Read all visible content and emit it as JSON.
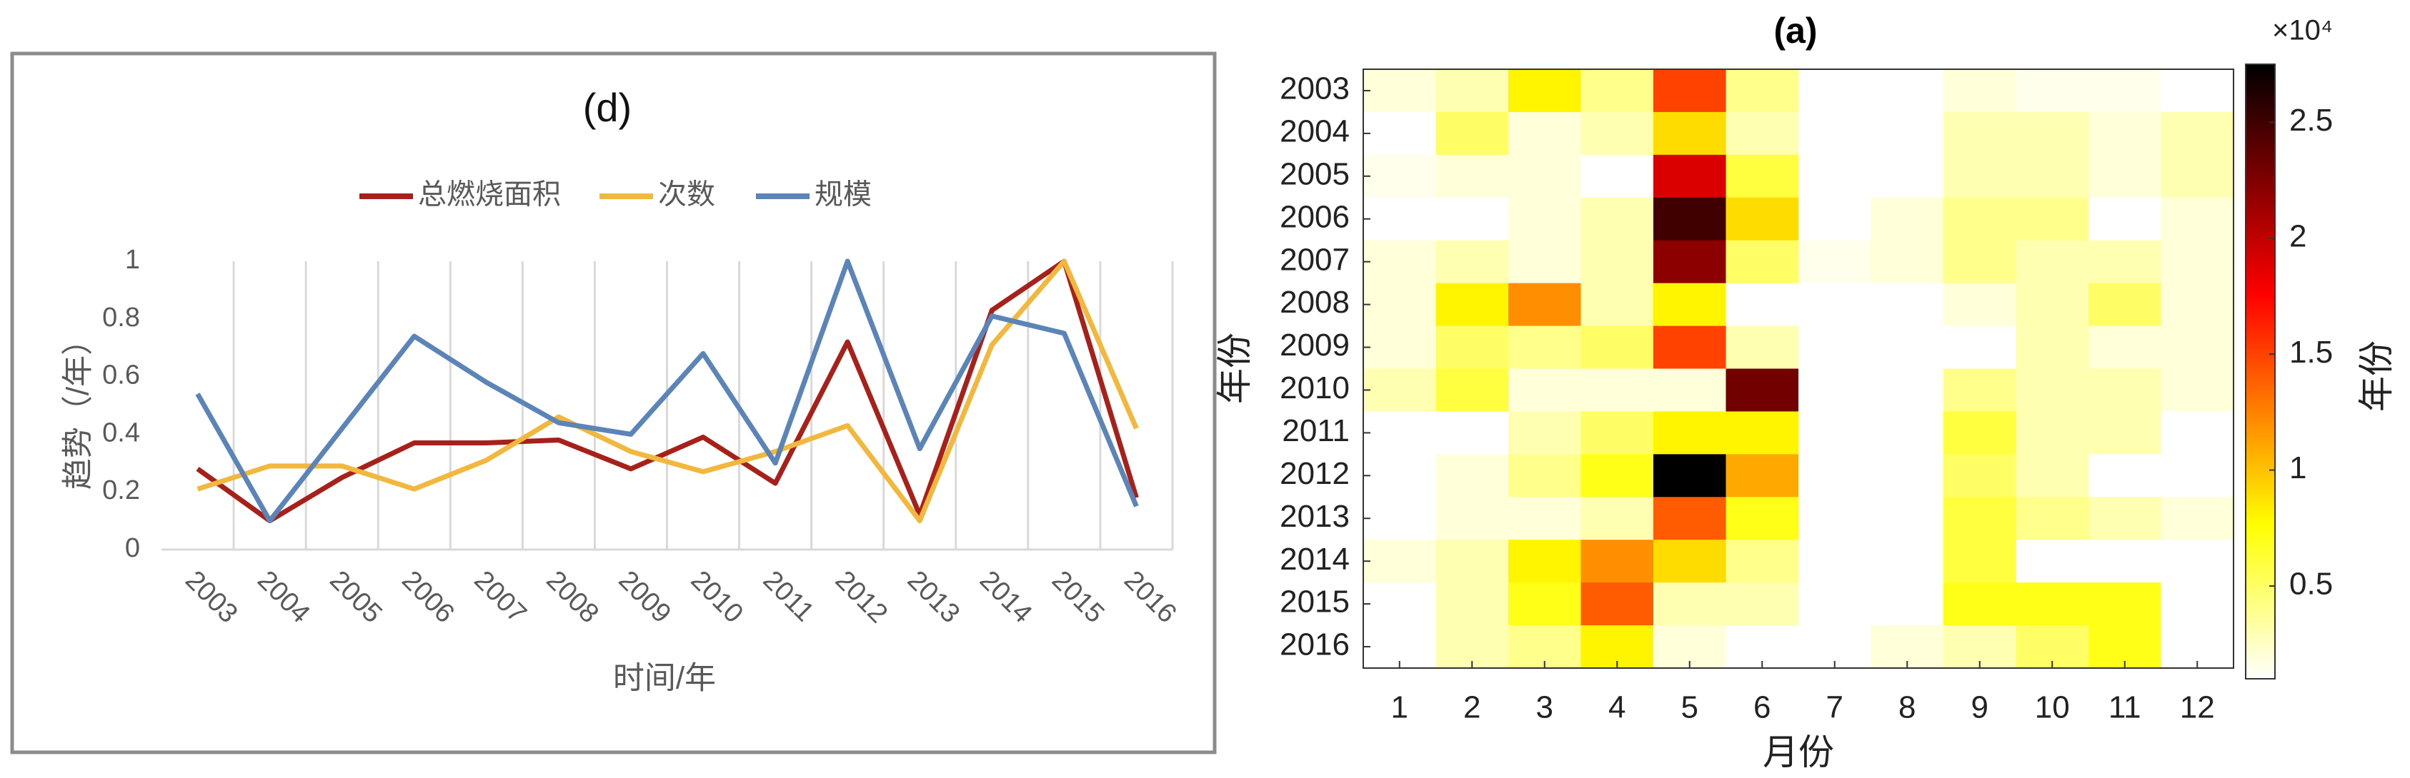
{
  "chart_data": [
    {
      "type": "line",
      "title": "(d)",
      "x_label": "时间/年",
      "y_label": "趋势（/年）",
      "categories": [
        "2003",
        "2004",
        "2005",
        "2006",
        "2007",
        "2008",
        "2009",
        "2010",
        "2011",
        "2012",
        "2013",
        "2014",
        "2015",
        "2016"
      ],
      "series": [
        {
          "name": "总燃烧面积",
          "color": "#a8201a",
          "values": [
            0.28,
            0.1,
            0.25,
            0.37,
            0.37,
            0.38,
            0.28,
            0.39,
            0.23,
            0.72,
            0.12,
            0.83,
            1.0,
            0.18
          ]
        },
        {
          "name": "次数",
          "color": "#f2b73d",
          "values": [
            0.21,
            0.29,
            0.29,
            0.21,
            0.31,
            0.46,
            0.34,
            0.27,
            0.34,
            0.43,
            0.1,
            0.71,
            1.0,
            0.42
          ]
        },
        {
          "name": "规模",
          "color": "#5b84b8",
          "values": [
            0.54,
            0.1,
            0.42,
            0.74,
            0.58,
            0.44,
            0.4,
            0.68,
            0.3,
            1.0,
            0.35,
            0.81,
            0.75,
            0.15
          ]
        }
      ],
      "ylim": [
        0,
        1
      ],
      "yticks": [
        0,
        0.2,
        0.4,
        0.6,
        0.8,
        1
      ],
      "grid": "x",
      "legend": "top"
    },
    {
      "type": "heatmap",
      "title": "(a)",
      "x_label": "月份",
      "y_label": "年份",
      "colorbar_label": "年份",
      "colorbar_multiplier": "×10⁴",
      "x_categories": [
        "1",
        "2",
        "3",
        "4",
        "5",
        "6",
        "7",
        "8",
        "9",
        "10",
        "11",
        "12"
      ],
      "y_categories": [
        "2003",
        "2004",
        "2005",
        "2006",
        "2007",
        "2008",
        "2009",
        "2010",
        "2011",
        "2012",
        "2013",
        "2014",
        "2015",
        "2016"
      ],
      "values": [
        [
          0.2,
          0.3,
          0.8,
          0.4,
          1.5,
          0.4,
          0,
          0,
          0.2,
          0.15,
          0.15,
          0.05
        ],
        [
          0.05,
          0.5,
          0.2,
          0.3,
          0.9,
          0.3,
          0,
          0,
          0.3,
          0.3,
          0.2,
          0.3
        ],
        [
          0.15,
          0.2,
          0.2,
          0.1,
          1.9,
          0.6,
          0,
          0,
          0.3,
          0.3,
          0.2,
          0.3
        ],
        [
          0.1,
          0.05,
          0.2,
          0.3,
          2.5,
          0.9,
          0,
          0.2,
          0.4,
          0.4,
          0.1,
          0.2
        ],
        [
          0.2,
          0.3,
          0.2,
          0.3,
          2.2,
          0.5,
          0.15,
          0.2,
          0.4,
          0.3,
          0.3,
          0.2
        ],
        [
          0.2,
          0.8,
          1.2,
          0.3,
          0.8,
          0.1,
          0,
          0,
          0.2,
          0.3,
          0.5,
          0.2
        ],
        [
          0.2,
          0.5,
          0.4,
          0.5,
          1.5,
          0.3,
          0,
          0,
          0.1,
          0.3,
          0.2,
          0.2
        ],
        [
          0.3,
          0.6,
          0.2,
          0.2,
          0.2,
          2.3,
          0,
          0.1,
          0.4,
          0.3,
          0.3,
          0.2
        ],
        [
          0.05,
          0.1,
          0.3,
          0.5,
          0.8,
          0.8,
          0,
          0,
          0.6,
          0.3,
          0.3,
          0.1
        ],
        [
          0.05,
          0.2,
          0.4,
          0.7,
          2.75,
          1.1,
          0,
          0,
          0.5,
          0.3,
          0.1,
          0.1
        ],
        [
          0.1,
          0.2,
          0.2,
          0.3,
          1.4,
          0.7,
          0,
          0,
          0.6,
          0.4,
          0.3,
          0.2
        ],
        [
          0.2,
          0.3,
          0.8,
          1.2,
          0.9,
          0.4,
          0,
          0.1,
          0.6,
          0.1,
          0.1,
          0.1
        ],
        [
          0.1,
          0.3,
          0.7,
          1.4,
          0.3,
          0.3,
          0,
          0,
          0.7,
          0.7,
          0.7,
          0.1
        ],
        [
          0.05,
          0.3,
          0.4,
          0.8,
          0.2,
          0.1,
          0,
          0.2,
          0.3,
          0.5,
          0.7,
          0.1
        ]
      ],
      "clim": [
        0.1,
        2.75
      ],
      "cticks": [
        0.5,
        1,
        1.5,
        2,
        2.5
      ],
      "colormap": "hot-reversed"
    }
  ]
}
